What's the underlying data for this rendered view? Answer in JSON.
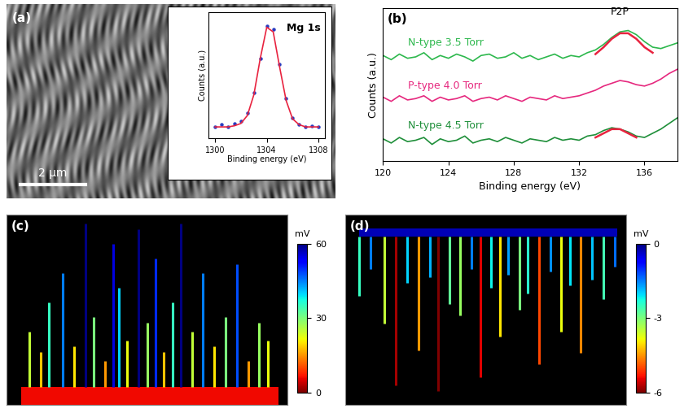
{
  "chart_data": [
    {
      "type": "image",
      "label": "(a)",
      "scale_bar": "2 µm",
      "inset": {
        "type": "line",
        "title": "Mg 1s",
        "xlabel": "Binding energy (eV)",
        "ylabel": "Counts (a.u.)",
        "x": [
          1300,
          1300.5,
          1301,
          1301.5,
          1302,
          1302.5,
          1303,
          1303.5,
          1304,
          1304.5,
          1305,
          1305.5,
          1306,
          1306.5,
          1307,
          1307.5,
          1308
        ],
        "series": [
          {
            "values": [
              0.1,
              0.12,
              0.1,
              0.13,
              0.15,
              0.22,
              0.4,
              0.7,
              0.98,
              0.95,
              0.65,
              0.35,
              0.18,
              0.12,
              0.1,
              0.11,
              0.1
            ],
            "color": "#2a3cbf",
            "marker": "dot"
          },
          {
            "values": [
              0.1,
              0.1,
              0.1,
              0.11,
              0.13,
              0.2,
              0.38,
              0.7,
              0.97,
              0.93,
              0.62,
              0.33,
              0.17,
              0.12,
              0.1,
              0.1,
              0.1
            ],
            "color": "#e8233f",
            "line_style": "solid"
          }
        ],
        "xlim": [
          1299.5,
          1308.5
        ],
        "ylim": [
          0,
          1.1
        ],
        "xticks": [
          1300,
          1304,
          1308
        ],
        "yticks": [],
        "tick_labels": "x"
      }
    },
    {
      "type": "line",
      "label": "(b)",
      "xlabel": "Binding energy (eV)",
      "ylabel": "Counts (a.u.)",
      "x": [
        120,
        120.5,
        121,
        121.5,
        122,
        122.5,
        123,
        123.5,
        124,
        124.5,
        125,
        125.5,
        126,
        126.5,
        127,
        127.5,
        128,
        128.5,
        129,
        129.5,
        130,
        130.5,
        131,
        131.5,
        132,
        132.5,
        133,
        133.5,
        134,
        134.5,
        135,
        135.5,
        136,
        136.5,
        137,
        137.5,
        138
      ],
      "series": [
        {
          "annotation": "N-type 3.5 Torr",
          "color": "#2db84d",
          "values": [
            8.1,
            7.8,
            8.2,
            7.9,
            8.0,
            8.3,
            7.8,
            8.1,
            7.9,
            8.2,
            8.0,
            7.7,
            8.1,
            8.2,
            7.9,
            8.0,
            8.3,
            7.9,
            8.1,
            7.8,
            8.0,
            8.2,
            7.9,
            8.1,
            8.0,
            8.3,
            8.5,
            8.9,
            9.4,
            9.8,
            9.9,
            9.6,
            9.1,
            8.7,
            8.6,
            8.8,
            9.0
          ]
        },
        {
          "annotation": "P-type 4.0 Torr",
          "color": "#e6287e",
          "values": [
            5.1,
            4.8,
            5.2,
            4.9,
            5.0,
            5.2,
            4.8,
            5.1,
            4.9,
            5.0,
            5.2,
            4.8,
            5.0,
            5.1,
            4.9,
            5.2,
            5.0,
            4.8,
            5.1,
            5.0,
            4.9,
            5.2,
            5.0,
            5.1,
            5.2,
            5.4,
            5.6,
            5.9,
            6.1,
            6.3,
            6.2,
            6.0,
            5.9,
            6.1,
            6.4,
            6.8,
            7.1
          ]
        },
        {
          "annotation": "N-type 4.5 Torr",
          "color": "#1f8f3a",
          "values": [
            2.1,
            1.8,
            2.2,
            1.9,
            2.0,
            2.2,
            1.7,
            2.1,
            1.9,
            2.0,
            2.3,
            1.8,
            2.0,
            2.1,
            1.9,
            2.2,
            2.0,
            1.8,
            2.1,
            2.0,
            1.9,
            2.2,
            2.0,
            2.1,
            2.0,
            2.3,
            2.4,
            2.7,
            2.9,
            2.8,
            2.6,
            2.3,
            2.2,
            2.5,
            2.8,
            3.2,
            3.6
          ]
        }
      ],
      "fits": [
        {
          "x": [
            133,
            133.5,
            134,
            134.5,
            135,
            135.5,
            136,
            136.5
          ],
          "values": [
            8.2,
            8.7,
            9.3,
            9.7,
            9.7,
            9.3,
            8.7,
            8.3
          ],
          "color": "#e8233f"
        },
        {
          "x": [
            133,
            133.5,
            134,
            134.5,
            135,
            135.5
          ],
          "values": [
            2.2,
            2.5,
            2.8,
            2.8,
            2.5,
            2.2
          ],
          "color": "#e8233f"
        }
      ],
      "annotation": "P2P",
      "xlim": [
        120,
        138
      ],
      "ylim": [
        0.5,
        11.5
      ],
      "xticks": [
        120,
        124,
        128,
        132,
        136
      ],
      "yticks": [],
      "tick_labels": "x"
    },
    {
      "type": "spikes",
      "label": "(c)",
      "baseline": 6,
      "x": [
        8,
        12,
        15,
        20,
        24,
        28,
        31,
        35,
        38,
        40,
        43,
        47,
        50,
        53,
        56,
        59,
        62,
        66,
        70,
        74,
        78,
        82,
        86,
        90,
        93
      ],
      "values": [
        25,
        18,
        35,
        45,
        20,
        62,
        30,
        15,
        55,
        40,
        22,
        60,
        28,
        50,
        18,
        35,
        62,
        25,
        45,
        20,
        30,
        48,
        15,
        28,
        22
      ],
      "xlim": [
        0,
        100
      ],
      "ylim": [
        0,
        65
      ],
      "xticks": [],
      "yticks": [],
      "tick_labels": false,
      "colorbar": {
        "label": "mV",
        "lim": [
          0,
          60
        ],
        "ticks": [
          0,
          30,
          60
        ]
      }
    },
    {
      "type": "spikes",
      "label": "(d)",
      "baseline": -0.3,
      "x": [
        5,
        9,
        14,
        18,
        22,
        26,
        30,
        33,
        37,
        41,
        45,
        48,
        52,
        55,
        58,
        62,
        65,
        69,
        73,
        77,
        80,
        84,
        88,
        92,
        96
      ],
      "values": [
        -2.5,
        -1.5,
        -3.5,
        -5.8,
        -2.0,
        -4.5,
        -1.8,
        -6.0,
        -2.8,
        -3.2,
        -1.5,
        -5.5,
        -2.2,
        -4.0,
        -1.7,
        -3.0,
        -2.4,
        -5.0,
        -1.6,
        -3.8,
        -2.1,
        -4.6,
        -1.9,
        -2.6,
        -1.4
      ],
      "xlim": [
        0,
        100
      ],
      "ylim": [
        -6.5,
        0.5
      ],
      "xticks": [],
      "yticks": [],
      "tick_labels": false,
      "colorbar": {
        "label": "mV",
        "lim": [
          -6,
          0
        ],
        "ticks": [
          0,
          -3,
          -6
        ]
      }
    }
  ]
}
